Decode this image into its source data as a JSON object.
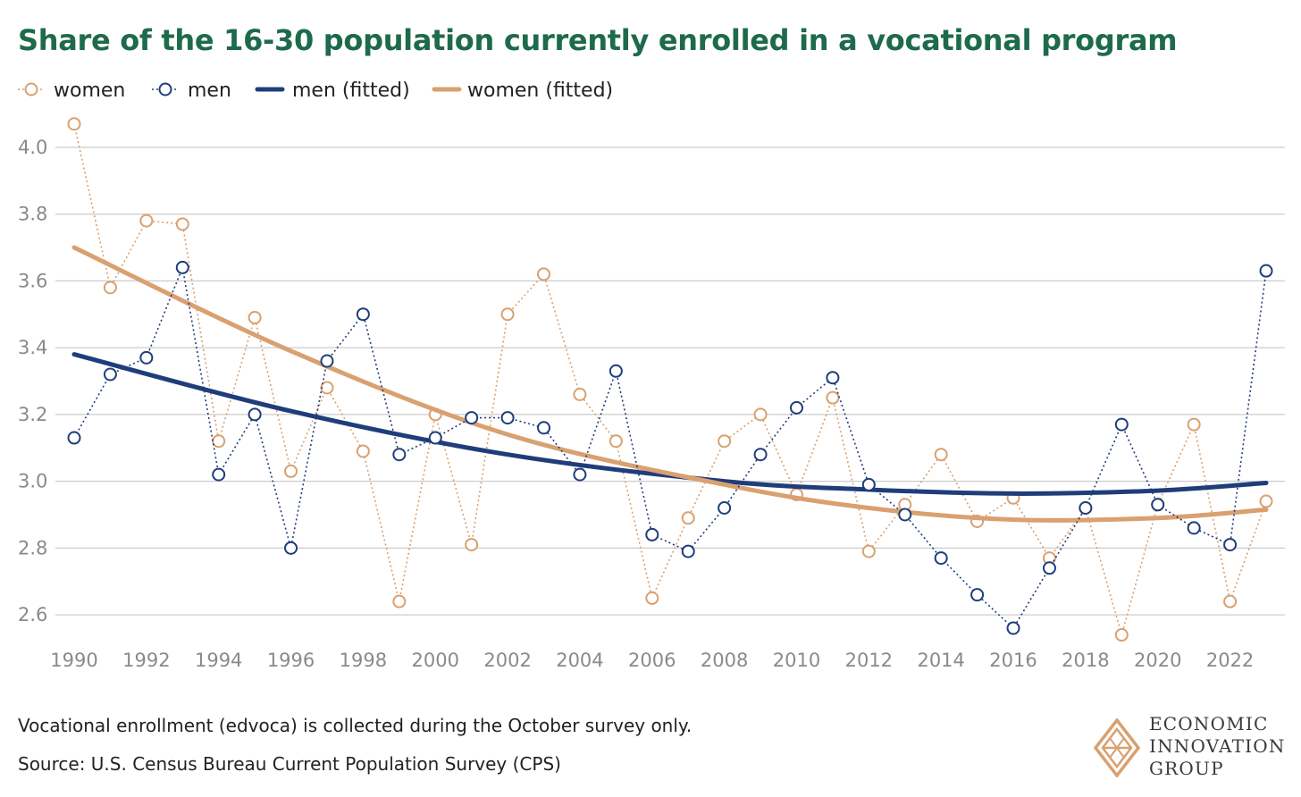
{
  "title": "Share of the 16-30 population currently enrolled in a vocational program",
  "footnotes": {
    "line1": "Vocational enrollment (edvoca) is collected during the October survey only.",
    "line2": "Source: U.S. Census Bureau Current Population Survey (CPS)"
  },
  "logo": {
    "line1": "ECONOMIC",
    "line2": "INNOVATION",
    "line3": "GROUP"
  },
  "colors": {
    "women": "#d9a070",
    "men": "#1f3d7a",
    "title": "#1e6a4c",
    "grid": "#cccccc",
    "axis_text": "#8a8a8a"
  },
  "chart_data": {
    "type": "line",
    "title": "Share of the 16-30 population currently enrolled in a vocational program",
    "x": [
      1990,
      1991,
      1992,
      1993,
      1994,
      1995,
      1996,
      1997,
      1998,
      1999,
      2000,
      2001,
      2002,
      2003,
      2004,
      2005,
      2006,
      2007,
      2008,
      2009,
      2010,
      2011,
      2012,
      2013,
      2014,
      2015,
      2016,
      2017,
      2018,
      2019,
      2020,
      2021,
      2022,
      2023
    ],
    "xlim": [
      1990,
      2023
    ],
    "xticks": [
      1990,
      1992,
      1994,
      1996,
      1998,
      2000,
      2002,
      2004,
      2006,
      2008,
      2010,
      2012,
      2014,
      2016,
      2018,
      2020,
      2022
    ],
    "ylim": [
      2.52,
      4.12
    ],
    "yticks": [
      2.6,
      2.8,
      3.0,
      3.2,
      3.4,
      3.6,
      3.8,
      4.0
    ],
    "ytick_labels": [
      "2.6",
      "2.8",
      "3.0",
      "3.2",
      "3.4",
      "3.6",
      "3.8",
      "4.0"
    ],
    "grid": true,
    "legend_position": "top-left",
    "series": [
      {
        "name": "women",
        "style": "dotted-markers",
        "color": "#d9a070",
        "values": [
          4.07,
          3.58,
          3.78,
          3.77,
          3.12,
          3.49,
          3.03,
          3.28,
          3.09,
          2.64,
          3.2,
          2.81,
          3.5,
          3.62,
          3.26,
          3.12,
          2.65,
          2.89,
          3.12,
          3.2,
          2.96,
          3.25,
          2.79,
          2.93,
          3.08,
          2.88,
          2.95,
          2.77,
          2.92,
          2.54,
          2.93,
          3.17,
          2.64,
          2.94
        ]
      },
      {
        "name": "men",
        "style": "dotted-markers",
        "color": "#1f3d7a",
        "values": [
          3.13,
          3.32,
          3.37,
          3.64,
          3.02,
          3.2,
          2.8,
          3.36,
          3.5,
          3.08,
          3.13,
          3.19,
          3.19,
          3.16,
          3.02,
          3.33,
          2.84,
          2.79,
          2.92,
          3.08,
          3.22,
          3.31,
          2.99,
          2.9,
          2.77,
          2.66,
          2.56,
          2.74,
          2.92,
          3.17,
          2.93,
          2.86,
          2.81,
          3.63
        ]
      },
      {
        "name": "men (fitted)",
        "style": "thick-line",
        "color": "#1f3d7a",
        "x": [
          1990,
          1996,
          2002,
          2008,
          2012,
          2016,
          2020,
          2023
        ],
        "values": [
          3.38,
          3.21,
          3.08,
          3.0,
          2.975,
          2.963,
          2.972,
          2.995
        ]
      },
      {
        "name": "women (fitted)",
        "style": "thick-line",
        "color": "#d9a070",
        "x": [
          1990,
          1996,
          2002,
          2008,
          2012,
          2016,
          2020,
          2023
        ],
        "values": [
          3.7,
          3.39,
          3.14,
          2.99,
          2.92,
          2.885,
          2.89,
          2.915
        ]
      }
    ]
  }
}
